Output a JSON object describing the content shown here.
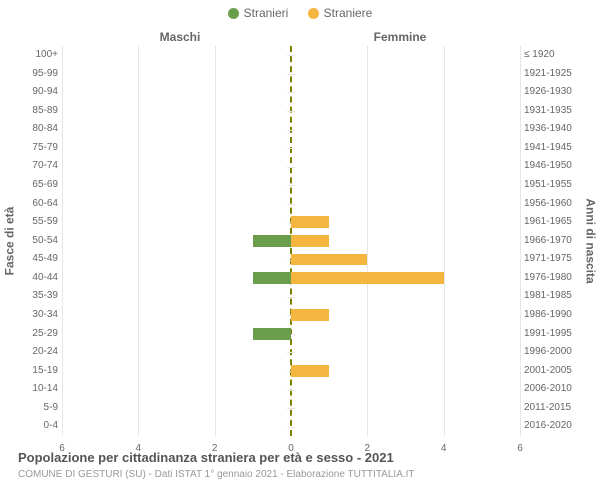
{
  "legend": {
    "male": {
      "label": "Stranieri",
      "color": "#6b9e4c"
    },
    "female": {
      "label": "Straniere",
      "color": "#f4b63f"
    }
  },
  "column_headers": {
    "left": "Maschi",
    "right": "Femmine"
  },
  "axis_labels": {
    "left": "Fasce di età",
    "right": "Anni di nascita"
  },
  "x_axis": {
    "max": 6,
    "ticks": [
      6,
      4,
      2,
      0,
      2,
      4,
      6
    ]
  },
  "rows": [
    {
      "age": "100+",
      "year": "≤ 1920",
      "m": 0,
      "f": 0
    },
    {
      "age": "95-99",
      "year": "1921-1925",
      "m": 0,
      "f": 0
    },
    {
      "age": "90-94",
      "year": "1926-1930",
      "m": 0,
      "f": 0
    },
    {
      "age": "85-89",
      "year": "1931-1935",
      "m": 0,
      "f": 0
    },
    {
      "age": "80-84",
      "year": "1936-1940",
      "m": 0,
      "f": 0
    },
    {
      "age": "75-79",
      "year": "1941-1945",
      "m": 0,
      "f": 0
    },
    {
      "age": "70-74",
      "year": "1946-1950",
      "m": 0,
      "f": 0
    },
    {
      "age": "65-69",
      "year": "1951-1955",
      "m": 0,
      "f": 0
    },
    {
      "age": "60-64",
      "year": "1956-1960",
      "m": 0,
      "f": 0
    },
    {
      "age": "55-59",
      "year": "1961-1965",
      "m": 0,
      "f": 1
    },
    {
      "age": "50-54",
      "year": "1966-1970",
      "m": 1,
      "f": 1
    },
    {
      "age": "45-49",
      "year": "1971-1975",
      "m": 0,
      "f": 2
    },
    {
      "age": "40-44",
      "year": "1976-1980",
      "m": 1,
      "f": 4
    },
    {
      "age": "35-39",
      "year": "1981-1985",
      "m": 0,
      "f": 0
    },
    {
      "age": "30-34",
      "year": "1986-1990",
      "m": 0,
      "f": 1
    },
    {
      "age": "25-29",
      "year": "1991-1995",
      "m": 1,
      "f": 0
    },
    {
      "age": "20-24",
      "year": "1996-2000",
      "m": 0,
      "f": 0
    },
    {
      "age": "15-19",
      "year": "2001-2005",
      "m": 0,
      "f": 1
    },
    {
      "age": "10-14",
      "year": "2006-2010",
      "m": 0,
      "f": 0
    },
    {
      "age": "5-9",
      "year": "2011-2015",
      "m": 0,
      "f": 0
    },
    {
      "age": "0-4",
      "year": "2016-2020",
      "m": 0,
      "f": 0
    }
  ],
  "footer": {
    "title": "Popolazione per cittadinanza straniera per età e sesso - 2021",
    "source": "COMUNE DI GESTURI (SU) - Dati ISTAT 1° gennaio 2021 - Elaborazione TUTTITALIA.IT"
  },
  "style": {
    "grid_color": "#e6e6e6",
    "center_line_color": "#808000",
    "text_color": "#666666",
    "background": "#ffffff"
  }
}
